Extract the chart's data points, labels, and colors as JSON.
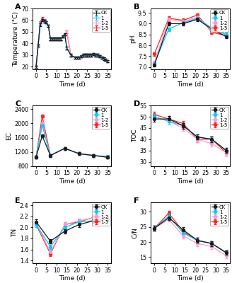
{
  "time_A": [
    0,
    1,
    2,
    3,
    4,
    5,
    6,
    7,
    8,
    9,
    10,
    11,
    12,
    13,
    14,
    15,
    17,
    19,
    20,
    21,
    22,
    23,
    24,
    25,
    26,
    27,
    28,
    29,
    30,
    31,
    32,
    33,
    34,
    35
  ],
  "temp_CK": [
    20,
    38,
    56,
    60,
    59,
    58,
    55,
    44,
    44,
    44,
    44,
    44,
    44,
    46,
    48,
    36,
    30,
    28,
    28,
    28,
    29,
    30,
    30,
    30,
    30,
    30,
    31,
    30,
    30,
    29,
    28,
    27,
    26,
    25
  ],
  "temp_1": [
    20,
    38,
    57,
    60,
    59,
    58,
    55,
    44,
    44,
    44,
    44,
    44,
    44,
    46,
    48,
    36,
    30,
    28,
    28,
    28,
    29,
    30,
    30,
    30,
    30,
    30,
    31,
    30,
    30,
    29,
    28,
    27,
    26,
    25
  ],
  "temp_12": [
    20,
    38,
    57,
    60,
    59,
    58,
    55,
    44,
    44,
    44,
    44,
    44,
    44,
    46,
    48,
    50,
    30,
    28,
    28,
    28,
    29,
    30,
    30,
    30,
    30,
    30,
    31,
    30,
    30,
    29,
    28,
    27,
    26,
    25
  ],
  "temp_15": [
    20,
    38,
    58,
    62,
    60,
    58,
    55,
    44,
    44,
    44,
    44,
    44,
    44,
    46,
    48,
    50,
    30,
    28,
    28,
    28,
    29,
    30,
    30,
    30,
    30,
    30,
    31,
    30,
    30,
    29,
    28,
    27,
    26,
    25
  ],
  "time_B": [
    0,
    7,
    14,
    21,
    28,
    35
  ],
  "pH_CK": [
    7.1,
    9.0,
    9.0,
    9.2,
    8.75,
    8.4
  ],
  "pH_1": [
    7.15,
    8.75,
    9.05,
    9.25,
    8.8,
    8.5
  ],
  "pH_12": [
    7.2,
    9.2,
    9.1,
    9.3,
    8.65,
    8.5
  ],
  "pH_15": [
    7.6,
    9.25,
    9.15,
    9.4,
    8.6,
    8.45
  ],
  "time_C": [
    0,
    3,
    7,
    14,
    21,
    28,
    35
  ],
  "EC_CK": [
    1050,
    1650,
    1100,
    1300,
    1150,
    1100,
    1050
  ],
  "EC_1": [
    1050,
    1950,
    1100,
    1300,
    1150,
    1100,
    1070
  ],
  "EC_12": [
    1050,
    2000,
    1100,
    1300,
    1150,
    1100,
    1050
  ],
  "EC_15": [
    1050,
    2200,
    1100,
    1300,
    1150,
    1100,
    1050
  ],
  "time_D": [
    0,
    7,
    14,
    21,
    28,
    35
  ],
  "TOC_CK": [
    49,
    49,
    46,
    41,
    40,
    35
  ],
  "TOC_1": [
    50,
    48,
    46,
    41,
    40,
    35
  ],
  "TOC_12": [
    50,
    48,
    45,
    40,
    38,
    34
  ],
  "TOC_15": [
    51,
    49,
    47,
    40,
    40,
    34
  ],
  "time_E": [
    0,
    7,
    14,
    21,
    28,
    35
  ],
  "TN_CK": [
    2.1,
    1.75,
    1.93,
    2.05,
    2.12,
    2.15
  ],
  "TN_1": [
    2.05,
    1.65,
    2.0,
    2.1,
    2.12,
    2.15
  ],
  "TN_12": [
    2.08,
    1.55,
    2.05,
    2.12,
    2.17,
    2.2
  ],
  "TN_15": [
    2.05,
    1.52,
    2.05,
    2.1,
    2.18,
    2.2
  ],
  "time_F": [
    0,
    7,
    14,
    21,
    28,
    35
  ],
  "CN_CK": [
    24.5,
    28.0,
    24.0,
    20.5,
    19.5,
    16.5
  ],
  "CN_1": [
    24.5,
    28.5,
    23.0,
    20.5,
    19.5,
    16.5
  ],
  "CN_12": [
    24.5,
    27.5,
    22.0,
    19.5,
    18.5,
    15.5
  ],
  "CN_15": [
    24.5,
    29.5,
    23.5,
    20.5,
    19.5,
    16.5
  ],
  "color_CK": "#1a1a1a",
  "color_1": "#00ccff",
  "color_12": "#ff99cc",
  "color_15": "#ff2222",
  "labels": [
    "CK",
    "1",
    "1-2",
    "1-5"
  ],
  "err_A": 1.0,
  "err_B": 0.08,
  "err_C": 40,
  "err_D": 1.2,
  "err_E": 0.04,
  "err_F": 0.8,
  "yticks_A": [
    20,
    30,
    40,
    50,
    60,
    70
  ],
  "yticks_B": [
    7.0,
    7.5,
    8.0,
    8.5,
    9.0,
    9.5
  ],
  "yticks_C": [
    800,
    1200,
    1600,
    2000,
    2400
  ],
  "yticks_D": [
    30,
    35,
    40,
    45,
    50,
    55
  ],
  "yticks_E": [
    1.4,
    1.6,
    1.8,
    2.0,
    2.2,
    2.4
  ],
  "yticks_F": [
    15,
    20,
    25,
    30
  ],
  "xticks": [
    0,
    5,
    10,
    15,
    20,
    25,
    30,
    35
  ]
}
